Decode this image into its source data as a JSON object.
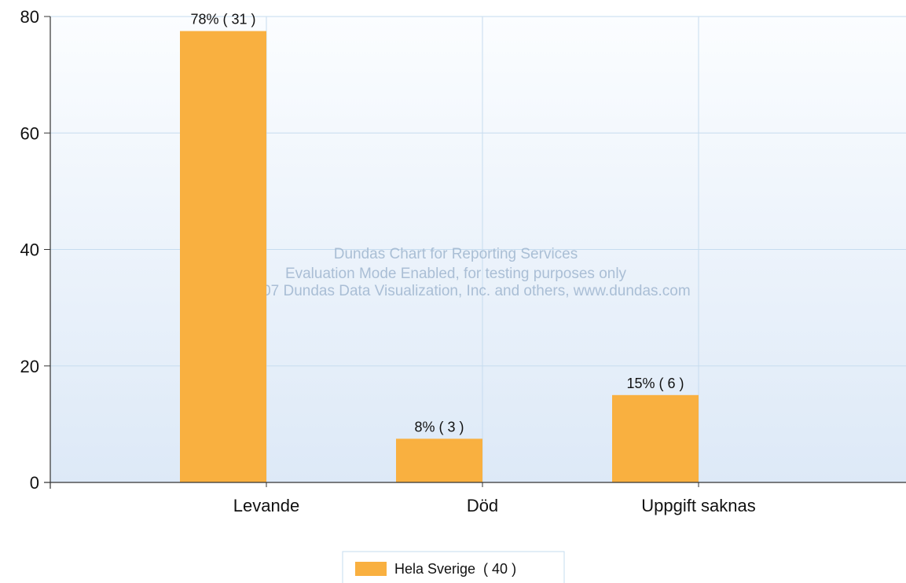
{
  "chart_data": {
    "type": "bar",
    "categories": [
      "Levande",
      "Död",
      "Uppgift saknas"
    ],
    "series": [
      {
        "name": "Hela Sverige",
        "values": [
          77.5,
          7.5,
          15
        ],
        "data_labels": [
          "78% ( 31 )",
          "8% ( 3 )",
          "15% ( 6 )"
        ]
      }
    ],
    "ylim": [
      0,
      80
    ],
    "yticks": [
      0,
      20,
      40,
      60,
      80
    ],
    "grid": true,
    "legend": {
      "placement": "bottom-center",
      "entries": [
        "Hela Sverige  ( 40 )"
      ]
    },
    "colors": {
      "bar": "#f9b040",
      "gridline": "#c6dcef",
      "axis": "#333333",
      "plot_top": "#fbfdff",
      "plot_bottom": "#dde9f7"
    },
    "watermark": [
      "Dundas Chart for Reporting Services",
      "Evaluation Mode Enabled, for testing purposes only",
      "(C) 2007 Dundas Data Visualization, Inc. and others, www.dundas.com"
    ]
  }
}
